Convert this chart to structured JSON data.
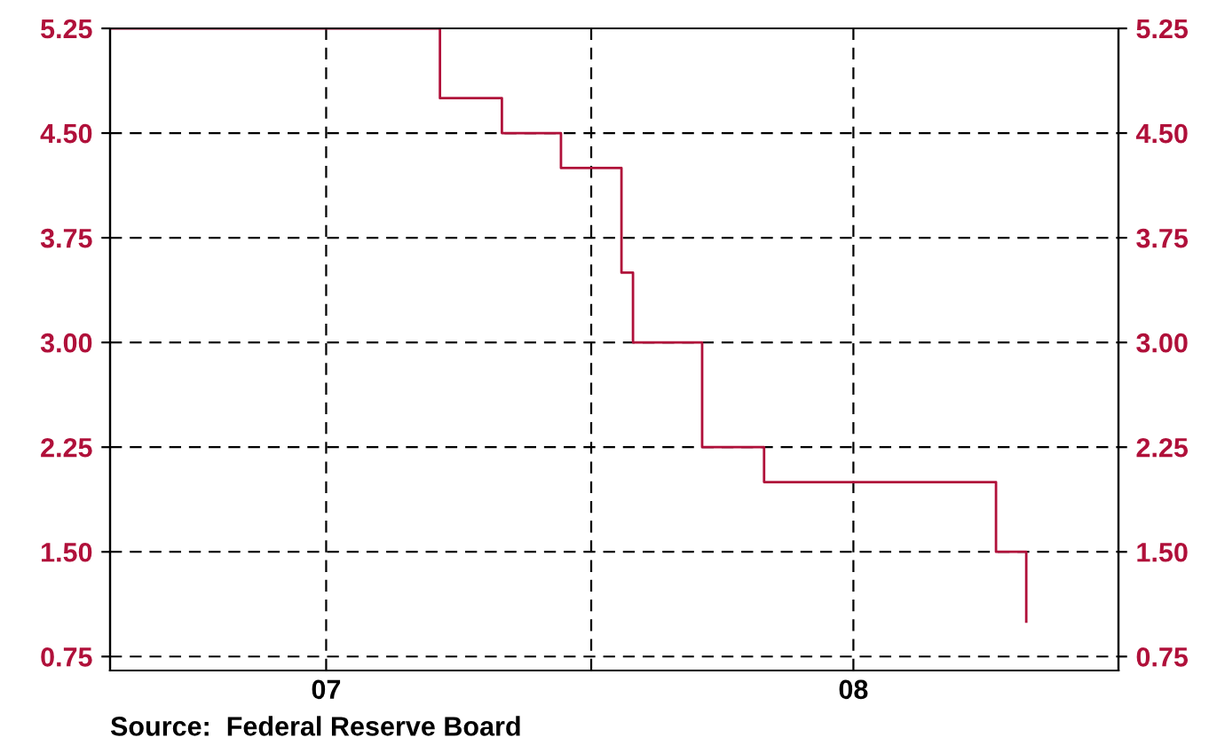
{
  "chart_data": {
    "type": "step",
    "x": [
      "2007-02-01",
      "2007-09-18",
      "2007-10-31",
      "2007-12-11",
      "2008-01-22",
      "2008-01-30",
      "2008-03-18",
      "2008-04-30",
      "2008-10-08",
      "2008-10-29"
    ],
    "series": [
      {
        "color": "#b0103a",
        "values": [
          5.25,
          4.75,
          4.5,
          4.25,
          3.5,
          3.0,
          2.25,
          2.0,
          1.5,
          1.0
        ]
      }
    ],
    "xlim": [
      "2007-02-01",
      "2009-01-01"
    ],
    "xticks": [
      {
        "value": "2007-07-01",
        "label": "07"
      },
      {
        "value": "2008-01-01",
        "label": null
      },
      {
        "value": "2008-07-01",
        "label": "08"
      }
    ],
    "ylim": [
      0.65,
      5.25
    ],
    "yticks": [
      {
        "value": 0.75,
        "label": "0.75"
      },
      {
        "value": 1.5,
        "label": "1.50"
      },
      {
        "value": 2.25,
        "label": "2.25"
      },
      {
        "value": 3.0,
        "label": "3.00"
      },
      {
        "value": 3.75,
        "label": "3.75"
      },
      {
        "value": 4.5,
        "label": "4.50"
      },
      {
        "value": 5.25,
        "label": "5.25"
      }
    ],
    "y2lim": [
      0.65,
      5.25
    ],
    "y2ticks": [
      {
        "value": 0.75,
        "label": "0.75"
      },
      {
        "value": 1.5,
        "label": "1.50"
      },
      {
        "value": 2.25,
        "label": "2.25"
      },
      {
        "value": 3.0,
        "label": "3.00"
      },
      {
        "value": 3.75,
        "label": "3.75"
      },
      {
        "value": 4.5,
        "label": "4.50"
      },
      {
        "value": 5.25,
        "label": "5.25"
      }
    ],
    "grid": true,
    "line_style": "solid",
    "marker": "none",
    "annotations": [
      "Source:  Federal Reserve Board"
    ]
  }
}
